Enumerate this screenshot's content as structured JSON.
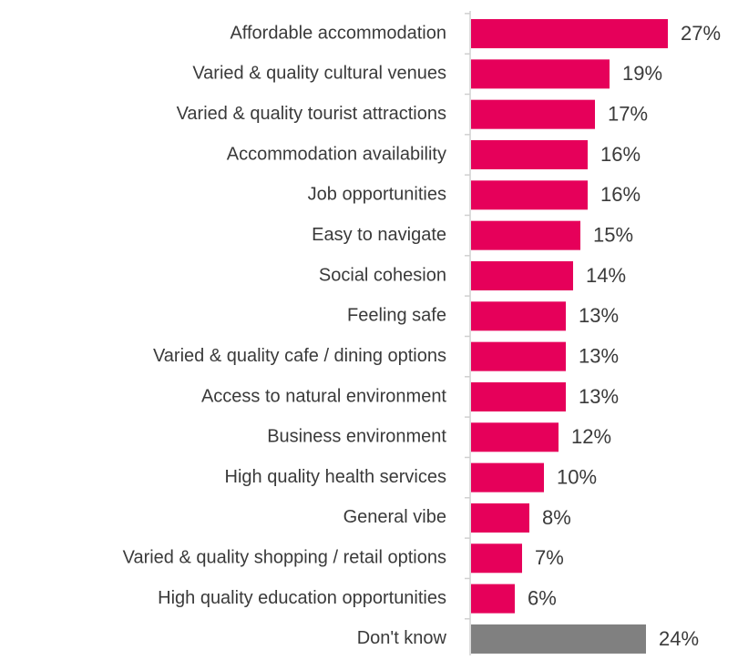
{
  "chart_data": {
    "type": "bar",
    "orientation": "horizontal",
    "categories": [
      "Affordable accommodation",
      "Varied & quality cultural venues",
      "Varied & quality tourist attractions",
      "Accommodation availability",
      "Job opportunities",
      "Easy to navigate",
      "Social cohesion",
      "Feeling safe",
      "Varied & quality cafe / dining options",
      "Access to natural environment",
      "Business environment",
      "High quality health services",
      "General vibe",
      "Varied & quality shopping / retail options",
      "High quality education opportunities",
      "Don't know"
    ],
    "values": [
      27,
      19,
      17,
      16,
      16,
      15,
      14,
      13,
      13,
      13,
      12,
      10,
      8,
      7,
      6,
      24
    ],
    "value_labels": [
      "27%",
      "19%",
      "17%",
      "16%",
      "16%",
      "15%",
      "14%",
      "13%",
      "13%",
      "13%",
      "12%",
      "10%",
      "8%",
      "7%",
      "6%",
      "24%"
    ],
    "colors": [
      "#e6005a",
      "#e6005a",
      "#e6005a",
      "#e6005a",
      "#e6005a",
      "#e6005a",
      "#e6005a",
      "#e6005a",
      "#e6005a",
      "#e6005a",
      "#e6005a",
      "#e6005a",
      "#e6005a",
      "#e6005a",
      "#e6005a",
      "#808080"
    ]
  }
}
